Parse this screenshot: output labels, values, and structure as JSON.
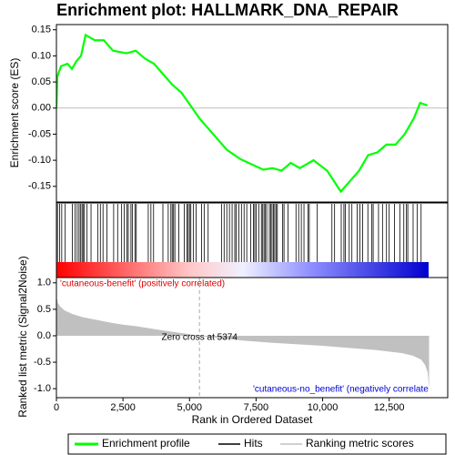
{
  "chart_data": {
    "type": "enrichment",
    "title": "Enrichment plot: HALLMARK_DNA_REPAIR",
    "xlabel": "Rank in Ordered Dataset",
    "ylabel": "Enrichment score (ES)",
    "xlim": [
      0,
      14700
    ],
    "xticks": [
      0,
      {
        "value": 2500,
        "label": "2,500"
      },
      {
        "value": 5000,
        "label": "5,000"
      },
      {
        "value": 7500,
        "label": "7,500"
      },
      {
        "value": 10000,
        "label": "10,000"
      },
      {
        "value": 12500,
        "label": "12,500"
      }
    ],
    "ylim": [
      -0.18,
      0.16
    ],
    "yticks": [
      0.15,
      {
        "value": 0.1,
        "label": "0.10"
      },
      0.05,
      {
        "value": 0,
        "label": "0.00"
      },
      -0.05,
      {
        "value": -0.1,
        "label": "-0.10"
      },
      -0.15
    ],
    "series": [
      {
        "name": "Enrichment profile",
        "color": "#00ff00",
        "x": [
          0,
          34,
          171,
          411,
          582,
          753,
          925,
          1096,
          1267,
          1438,
          1781,
          2123,
          2637,
          2979,
          3322,
          3664,
          4007,
          4349,
          4692,
          5034,
          5377,
          5890,
          6404,
          6918,
          7432,
          7774,
          8116,
          8459,
          8801,
          9144,
          9658,
          10171,
          10685,
          11027,
          11370,
          11712,
          12055,
          12397,
          12740,
          13082,
          13425,
          13664,
          13938
        ],
        "values": [
          0,
          0.06,
          0.08,
          0.085,
          0.075,
          0.09,
          0.1,
          0.14,
          0.135,
          0.13,
          0.13,
          0.11,
          0.105,
          0.11,
          0.095,
          0.085,
          0.065,
          0.045,
          0.03,
          0.005,
          -0.02,
          -0.05,
          -0.08,
          -0.098,
          -0.11,
          -0.118,
          -0.115,
          -0.12,
          -0.105,
          -0.115,
          -0.1,
          -0.12,
          -0.16,
          -0.14,
          -0.12,
          -0.09,
          -0.085,
          -0.07,
          -0.07,
          -0.05,
          -0.02,
          0.01,
          0.005
        ]
      }
    ],
    "hits": {
      "name": "Hits",
      "color": "#000000",
      "x": [
        40,
        120,
        200,
        330,
        600,
        700,
        780,
        850,
        900,
        960,
        1000,
        1050,
        1150,
        1300,
        1550,
        1650,
        1750,
        1900,
        2150,
        2300,
        2450,
        2550,
        2650,
        2700,
        2800,
        2850,
        2950,
        3000,
        3450,
        3550,
        3650,
        4000,
        4200,
        4300,
        4350,
        4400,
        4450,
        4600,
        4800,
        4900,
        4950,
        5000,
        5050,
        5150,
        5250,
        5450,
        5550,
        5700,
        6200,
        6300,
        6400,
        6500,
        6600,
        6700,
        6750,
        6850,
        6950,
        7050,
        7150,
        7300,
        7400,
        7450,
        7500,
        7600,
        7700,
        7750,
        7800,
        7850,
        7900,
        8000,
        8050,
        8100,
        8150,
        8200,
        8250,
        8300,
        8500,
        8550,
        8700,
        9000,
        9100,
        9200,
        9300,
        9450,
        9500,
        9800,
        10350,
        10450,
        10700,
        10800,
        10850,
        11000,
        11100,
        11300,
        11400,
        11500,
        11700,
        11850,
        11900,
        12100,
        12250,
        12400,
        12500,
        12700,
        12900,
        13050,
        13150,
        13200,
        13400,
        13550,
        13700
      ]
    },
    "metric": {
      "name": "Ranking metric scores",
      "color": "#c0c0c0",
      "ylabel": "Ranked list metric (Signal2Noise)",
      "ylim": [
        -1.17,
        1.1
      ],
      "yticks": [
        {
          "value": 1,
          "label": "1.0"
        },
        0.5,
        {
          "value": 0,
          "label": "0.0"
        },
        -0.5,
        {
          "value": -1,
          "label": "-1.0"
        }
      ],
      "x": [
        0,
        50,
        150,
        300,
        600,
        1000,
        1500,
        2000,
        2500,
        3000,
        4000,
        5000,
        5374,
        6000,
        7000,
        8000,
        9000,
        10000,
        11000,
        12000,
        12500,
        13000,
        13400,
        13700,
        13850,
        13950,
        14000
      ],
      "values": [
        0.75,
        0.62,
        0.55,
        0.48,
        0.41,
        0.35,
        0.3,
        0.25,
        0.21,
        0.18,
        0.1,
        0.03,
        0,
        -0.04,
        -0.09,
        -0.13,
        -0.16,
        -0.19,
        -0.23,
        -0.27,
        -0.3,
        -0.33,
        -0.38,
        -0.45,
        -0.55,
        -0.7,
        -1.0
      ]
    },
    "zero_cross": {
      "value": 5374,
      "label": "Zero cross at 5374"
    },
    "pos_label": "'cutaneous-benefit' (positively correlated)",
    "neg_label": "'cutaneous-no_benefit' (negatively correlate"
  }
}
